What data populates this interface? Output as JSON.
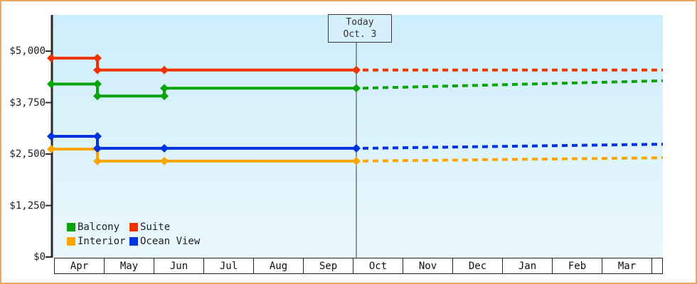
{
  "frame": {
    "border_color": "#edaa5f",
    "background_color": "#ffffff",
    "plot_background_top": "#cdeefb",
    "plot_background_bottom": "#e9f8fd"
  },
  "chart_data": {
    "type": "line",
    "style": "stepped price history (solid) with forecast (dashed) split at a Today marker",
    "today_marker": {
      "line1": "Today",
      "line2": "Oct. 3"
    },
    "y_axis": {
      "ylim": [
        0,
        5000
      ],
      "tick_values": [
        5000,
        3750,
        2500,
        1250,
        0
      ],
      "tick_labels": [
        "$5,000",
        "$3,750",
        "$2,500",
        "$1,250",
        "$0"
      ]
    },
    "x_axis": {
      "months": [
        "Apr",
        "May",
        "Jun",
        "Jul",
        "Aug",
        "Sep",
        "Oct",
        "Nov",
        "Dec",
        "Jan",
        "Feb",
        "Mar"
      ]
    },
    "legend": {
      "position": "bottom-left-inside",
      "items": [
        {
          "label": "Balcony",
          "color": "#0aa30a"
        },
        {
          "label": "Suite",
          "color": "#ee3300"
        },
        {
          "label": "Interior",
          "color": "#ffa500"
        },
        {
          "label": "Ocean View",
          "color": "#0033e0"
        }
      ]
    },
    "series": [
      {
        "name": "Interior",
        "color": "#ffa500",
        "history": [
          {
            "month": "Apr",
            "value": 2620
          },
          {
            "month": "May",
            "value": 2330
          },
          {
            "month": "Jun",
            "value": 2330
          }
        ],
        "forecast_start_value": 2330,
        "forecast_end_value": 2410
      },
      {
        "name": "Ocean View",
        "color": "#0033e0",
        "history": [
          {
            "month": "Apr",
            "value": 2930
          },
          {
            "month": "May",
            "value": 2640
          },
          {
            "month": "Jun",
            "value": 2640
          }
        ],
        "forecast_start_value": 2640,
        "forecast_end_value": 2740
      },
      {
        "name": "Balcony",
        "color": "#0aa30a",
        "history": [
          {
            "month": "Apr",
            "value": 4200
          },
          {
            "month": "May",
            "value": 3910
          },
          {
            "month": "Jun",
            "value": 4100
          }
        ],
        "forecast_start_value": 4100,
        "forecast_end_value": 4280
      },
      {
        "name": "Suite",
        "color": "#ee3300",
        "history": [
          {
            "month": "Apr",
            "value": 4830
          },
          {
            "month": "May",
            "value": 4540
          },
          {
            "month": "Jun",
            "value": 4540
          }
        ],
        "forecast_start_value": 4540,
        "forecast_end_value": 4540
      }
    ]
  }
}
